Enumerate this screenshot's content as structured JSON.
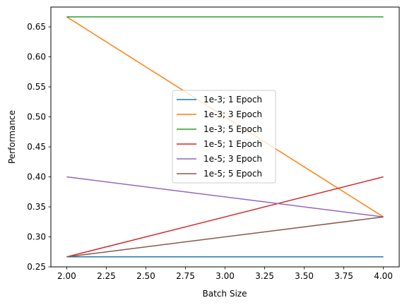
{
  "chart_data": {
    "type": "line",
    "title": "",
    "xlabel": "Batch Size",
    "ylabel": "Performance",
    "xlim": [
      1.9,
      4.1
    ],
    "ylim": [
      0.25,
      0.683
    ],
    "xticks": [
      2.0,
      2.25,
      2.5,
      2.75,
      3.0,
      3.25,
      3.5,
      3.75,
      4.0
    ],
    "xtick_labels": [
      "2.00",
      "2.25",
      "2.50",
      "2.75",
      "3.00",
      "3.25",
      "3.50",
      "3.75",
      "4.00"
    ],
    "yticks": [
      0.25,
      0.3,
      0.35,
      0.4,
      0.45,
      0.5,
      0.55,
      0.6,
      0.65
    ],
    "ytick_labels": [
      "0.25",
      "0.30",
      "0.35",
      "0.40",
      "0.45",
      "0.50",
      "0.55",
      "0.60",
      "0.65"
    ],
    "grid": false,
    "legend_position": "center",
    "x": [
      2,
      4
    ],
    "series": [
      {
        "name": "1e-3; 1 Epoch",
        "color": "#1f77b4",
        "values": [
          0.2667,
          0.2667
        ]
      },
      {
        "name": "1e-3; 3 Epoch",
        "color": "#ff7f0e",
        "values": [
          0.6667,
          0.3333
        ]
      },
      {
        "name": "1e-3; 5 Epoch",
        "color": "#2ca02c",
        "values": [
          0.6667,
          0.6667
        ]
      },
      {
        "name": "1e-5; 1 Epoch",
        "color": "#d62728",
        "values": [
          0.2667,
          0.4
        ]
      },
      {
        "name": "1e-5; 3 Epoch",
        "color": "#9467bd",
        "values": [
          0.4,
          0.3333
        ]
      },
      {
        "name": "1e-5; 5 Epoch",
        "color": "#8c564b",
        "values": [
          0.2667,
          0.3333
        ]
      }
    ]
  }
}
